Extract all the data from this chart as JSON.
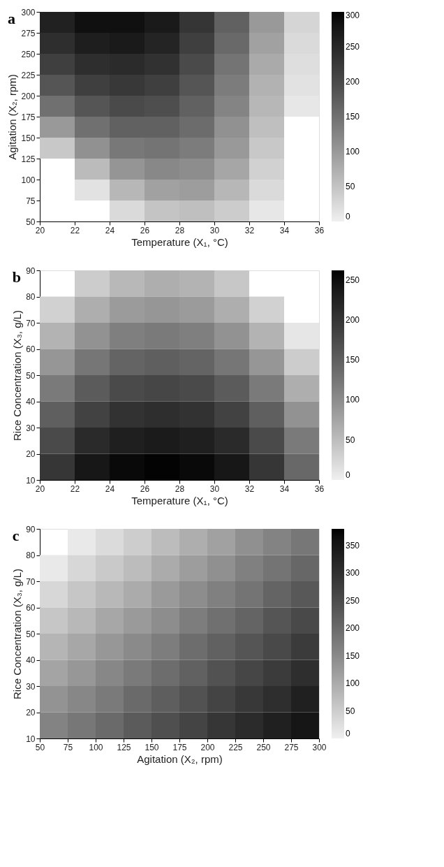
{
  "chart_data": [
    {
      "type": "heatmap",
      "title": "a",
      "xlabel": "Temperature (X₁, °C)",
      "ylabel": "Agitation (X₂, rpm)",
      "x": [
        21,
        23,
        25,
        27,
        29,
        31,
        33,
        35
      ],
      "y": [
        287.5,
        262.5,
        237.5,
        212.5,
        187.5,
        162.5,
        137.5,
        112.5,
        87.5,
        62.5
      ],
      "cells": [
        [
          260,
          285,
          285,
          270,
          230,
          170,
          100,
          30
        ],
        [
          240,
          265,
          270,
          255,
          215,
          160,
          90,
          25
        ],
        [
          215,
          240,
          245,
          235,
          200,
          145,
          80,
          20
        ],
        [
          185,
          215,
          225,
          215,
          185,
          135,
          70,
          15
        ],
        [
          150,
          185,
          200,
          195,
          170,
          125,
          65,
          10
        ],
        [
          100,
          150,
          170,
          170,
          155,
          110,
          55,
          null
        ],
        [
          45,
          110,
          140,
          145,
          135,
          100,
          45,
          null
        ],
        [
          null,
          60,
          105,
          120,
          115,
          85,
          35,
          null
        ],
        [
          null,
          15,
          65,
          90,
          95,
          65,
          25,
          null
        ],
        [
          null,
          null,
          25,
          50,
          55,
          40,
          10,
          null
        ]
      ],
      "xlim": [
        20,
        36
      ],
      "xticks": [
        20,
        22,
        24,
        26,
        28,
        30,
        32,
        34,
        36
      ],
      "ylim": [
        50,
        300
      ],
      "yticks": [
        50,
        75,
        100,
        125,
        150,
        175,
        200,
        225,
        250,
        275,
        300
      ],
      "clim": [
        0,
        300
      ],
      "cticks": [
        0,
        50,
        100,
        150,
        200,
        250,
        300
      ],
      "colors": [
        "#f0f0f0",
        "#000000"
      ]
    },
    {
      "type": "heatmap",
      "title": "b",
      "xlabel": "Temperature (X₁, °C)",
      "ylabel": "Rice Concentration (X₃, g/L)",
      "x": [
        21,
        23,
        25,
        27,
        29,
        31,
        33,
        35
      ],
      "y": [
        85,
        75,
        65,
        55,
        45,
        35,
        25,
        15
      ],
      "cells": [
        [
          null,
          35,
          55,
          65,
          60,
          40,
          null,
          null
        ],
        [
          30,
          65,
          85,
          90,
          85,
          65,
          30,
          null
        ],
        [
          60,
          95,
          115,
          120,
          115,
          95,
          60,
          10
        ],
        [
          90,
          125,
          145,
          150,
          145,
          125,
          90,
          35
        ],
        [
          120,
          155,
          175,
          180,
          175,
          155,
          120,
          65
        ],
        [
          150,
          185,
          205,
          210,
          205,
          185,
          150,
          95
        ],
        [
          175,
          215,
          230,
          235,
          230,
          215,
          175,
          120
        ],
        [
          200,
          240,
          255,
          260,
          255,
          240,
          200,
          140
        ]
      ],
      "xlim": [
        20,
        36
      ],
      "xticks": [
        20,
        22,
        24,
        26,
        28,
        30,
        32,
        34,
        36
      ],
      "ylim": [
        10,
        90
      ],
      "yticks": [
        10,
        20,
        30,
        40,
        50,
        60,
        70,
        80,
        90
      ],
      "clim": [
        0,
        262
      ],
      "cticks": [
        0,
        50,
        100,
        150,
        200,
        250
      ],
      "colors": [
        "#f0f0f0",
        "#000000"
      ]
    },
    {
      "type": "heatmap",
      "title": "c",
      "xlabel": "Agitation (X₂, rpm)",
      "ylabel": "Rice Concentration (X₃, g/L)",
      "x": [
        62.5,
        87.5,
        112.5,
        137.5,
        162.5,
        187.5,
        212.5,
        237.5,
        262.5,
        287.5
      ],
      "y": [
        85,
        75,
        65,
        55,
        45,
        35,
        25,
        15
      ],
      "cells": [
        [
          null,
          10,
          30,
          50,
          75,
          95,
          115,
          140,
          160,
          180
        ],
        [
          10,
          35,
          55,
          75,
          100,
          120,
          140,
          165,
          185,
          205
        ],
        [
          35,
          60,
          80,
          100,
          125,
          145,
          165,
          185,
          210,
          230
        ],
        [
          60,
          80,
          105,
          125,
          145,
          170,
          190,
          210,
          235,
          255
        ],
        [
          85,
          105,
          130,
          150,
          170,
          195,
          215,
          235,
          255,
          280
        ],
        [
          110,
          130,
          155,
          175,
          195,
          215,
          240,
          260,
          280,
          305
        ],
        [
          135,
          155,
          175,
          200,
          220,
          240,
          265,
          285,
          305,
          330
        ],
        [
          160,
          180,
          200,
          225,
          245,
          265,
          290,
          310,
          330,
          350
        ]
      ],
      "xlim": [
        50,
        300
      ],
      "xticks": [
        50,
        75,
        100,
        125,
        150,
        175,
        200,
        225,
        250,
        275,
        300
      ],
      "ylim": [
        10,
        90
      ],
      "yticks": [
        10,
        20,
        30,
        40,
        50,
        60,
        70,
        80,
        90
      ],
      "clim": [
        0,
        380
      ],
      "cticks": [
        0,
        50,
        100,
        150,
        200,
        250,
        300,
        350
      ],
      "colors": [
        "#f0f0f0",
        "#000000"
      ]
    }
  ]
}
